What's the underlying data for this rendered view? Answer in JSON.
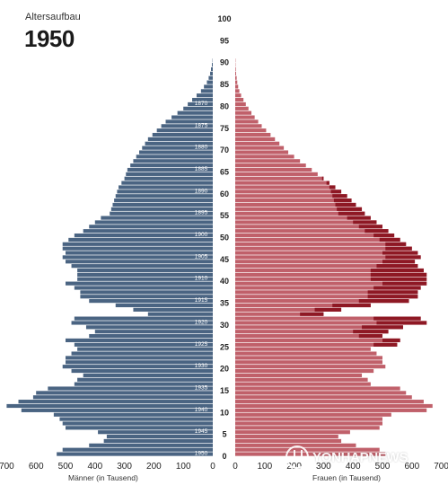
{
  "header": {
    "subtitle": "Altersaufbau",
    "year": "1950"
  },
  "watermark": {
    "text": "YONHAPNEWS",
    "logo": "yonhap-logo-icon"
  },
  "colors": {
    "male": "#4a6482",
    "female_base": "#c0606a",
    "female_excess": "#8e1824",
    "birth_year_label": "#ffffff"
  },
  "chart_data": {
    "type": "bar",
    "subtype": "population-pyramid",
    "title": "1950",
    "subtitle": "Altersaufbau",
    "xlabel_left": "Männer (in Tausend)",
    "xlabel_right": "Frauen (in Tausend)",
    "x_ticks": [
      0,
      100,
      200,
      300,
      400,
      500,
      600,
      700
    ],
    "xlim": [
      0,
      700
    ],
    "age_ticks": [
      0,
      5,
      10,
      15,
      20,
      25,
      30,
      35,
      40,
      45,
      50,
      55,
      60,
      65,
      70,
      75,
      80,
      85,
      90,
      95,
      100
    ],
    "age_range": [
      0,
      100
    ],
    "birth_year_labels": [
      {
        "age": 0,
        "label": "1950"
      },
      {
        "age": 5,
        "label": "1945"
      },
      {
        "age": 10,
        "label": "1940"
      },
      {
        "age": 15,
        "label": "1935"
      },
      {
        "age": 20,
        "label": "1930"
      },
      {
        "age": 25,
        "label": "1925"
      },
      {
        "age": 30,
        "label": "1920"
      },
      {
        "age": 35,
        "label": "1915"
      },
      {
        "age": 40,
        "label": "1910"
      },
      {
        "age": 45,
        "label": "1905"
      },
      {
        "age": 50,
        "label": "1900"
      },
      {
        "age": 55,
        "label": "1895"
      },
      {
        "age": 60,
        "label": "1890"
      },
      {
        "age": 65,
        "label": "1885"
      },
      {
        "age": 70,
        "label": "1880"
      },
      {
        "age": 75,
        "label": "1875"
      },
      {
        "age": 80,
        "label": "1870"
      }
    ],
    "ages": [
      0,
      1,
      2,
      3,
      4,
      5,
      6,
      7,
      8,
      9,
      10,
      11,
      12,
      13,
      14,
      15,
      16,
      17,
      18,
      19,
      20,
      21,
      22,
      23,
      24,
      25,
      26,
      27,
      28,
      29,
      30,
      31,
      32,
      33,
      34,
      35,
      36,
      37,
      38,
      39,
      40,
      41,
      42,
      43,
      44,
      45,
      46,
      47,
      48,
      49,
      50,
      51,
      52,
      53,
      54,
      55,
      56,
      57,
      58,
      59,
      60,
      61,
      62,
      63,
      64,
      65,
      66,
      67,
      68,
      69,
      70,
      71,
      72,
      73,
      74,
      75,
      76,
      77,
      78,
      79,
      80,
      81,
      82,
      83,
      84,
      85,
      86,
      87,
      88,
      89,
      90
    ],
    "series": [
      {
        "name": "Männer (in Tausend)",
        "values": [
          530,
          510,
          420,
          370,
          360,
          390,
          500,
          510,
          520,
          540,
          650,
          700,
          660,
          610,
          600,
          560,
          470,
          460,
          440,
          480,
          510,
          500,
          500,
          480,
          460,
          470,
          500,
          420,
          400,
          430,
          480,
          470,
          220,
          270,
          330,
          420,
          450,
          450,
          470,
          500,
          460,
          460,
          460,
          480,
          500,
          510,
          500,
          510,
          510,
          490,
          470,
          440,
          420,
          400,
          380,
          350,
          345,
          340,
          335,
          330,
          325,
          320,
          310,
          300,
          295,
          290,
          280,
          270,
          260,
          250,
          240,
          230,
          220,
          205,
          190,
          175,
          160,
          140,
          120,
          100,
          85,
          70,
          55,
          40,
          30,
          20,
          14,
          9,
          6,
          3,
          1
        ]
      },
      {
        "name": "Frauen (in Tausend)",
        "values": [
          510,
          490,
          410,
          360,
          350,
          390,
          490,
          500,
          500,
          530,
          650,
          670,
          640,
          600,
          580,
          560,
          460,
          450,
          430,
          470,
          510,
          500,
          500,
          480,
          460,
          550,
          560,
          500,
          520,
          570,
          650,
          630,
          300,
          360,
          460,
          590,
          620,
          620,
          630,
          650,
          650,
          650,
          640,
          620,
          610,
          630,
          620,
          600,
          580,
          560,
          540,
          520,
          500,
          480,
          460,
          440,
          430,
          410,
          395,
          380,
          360,
          340,
          320,
          300,
          280,
          260,
          240,
          220,
          200,
          180,
          165,
          150,
          135,
          120,
          105,
          90,
          78,
          66,
          55,
          45,
          36,
          28,
          20,
          14,
          10,
          7,
          5,
          3,
          2,
          1,
          1
        ]
      },
      {
        "name": "",
        "values": [
          0,
          0,
          0,
          0,
          0,
          0,
          0,
          0,
          0,
          0,
          0,
          0,
          0,
          0,
          0,
          0,
          0,
          0,
          0,
          0,
          0,
          0,
          0,
          0,
          0,
          80,
          60,
          80,
          120,
          140,
          170,
          160,
          80,
          90,
          130,
          170,
          170,
          170,
          160,
          150,
          190,
          190,
          180,
          140,
          110,
          120,
          120,
          90,
          70,
          70,
          70,
          80,
          80,
          80,
          80,
          90,
          85,
          70,
          60,
          50,
          35,
          20,
          10,
          5,
          0,
          0,
          0,
          0,
          0,
          0,
          0,
          0,
          0,
          0,
          0,
          0,
          0,
          0,
          0,
          0,
          0,
          0,
          0,
          0,
          0,
          0,
          0,
          0,
          0,
          0,
          0
        ]
      }
    ],
    "legend": "none",
    "grid": false
  }
}
